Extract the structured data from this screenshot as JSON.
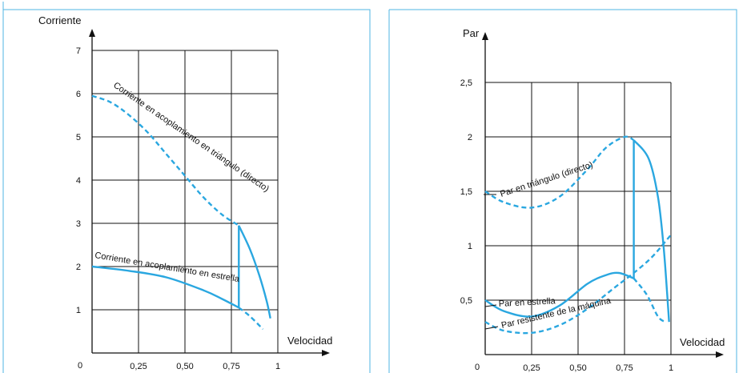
{
  "chart_data": [
    {
      "type": "line",
      "title": "",
      "ylabel": "Corriente",
      "xlabel": "Velocidad",
      "xlim": [
        0,
        1
      ],
      "ylim": [
        0,
        7
      ],
      "x_ticks": [
        {
          "value": 0,
          "label": "0"
        },
        {
          "value": 0.25,
          "label": "0,25"
        },
        {
          "value": 0.5,
          "label": "0,50"
        },
        {
          "value": 0.75,
          "label": "0,75"
        },
        {
          "value": 1,
          "label": "1"
        }
      ],
      "y_ticks": [
        {
          "value": 1,
          "label": "1"
        },
        {
          "value": 2,
          "label": "2"
        },
        {
          "value": 3,
          "label": "3"
        },
        {
          "value": 4,
          "label": "4"
        },
        {
          "value": 5,
          "label": "5"
        },
        {
          "value": 6,
          "label": "6"
        },
        {
          "value": 7,
          "label": "7"
        }
      ],
      "grid": true,
      "color": "#2aa7e0",
      "series": [
        {
          "name": "Corriente en acoplamiento en triángulo (directo)",
          "style": "dashed",
          "points": [
            [
              0,
              5.95
            ],
            [
              0.1,
              5.8
            ],
            [
              0.2,
              5.5
            ],
            [
              0.3,
              5.1
            ],
            [
              0.4,
              4.6
            ],
            [
              0.5,
              4.1
            ],
            [
              0.6,
              3.6
            ],
            [
              0.7,
              3.2
            ],
            [
              0.79,
              2.95
            ]
          ]
        },
        {
          "name": "",
          "style": "solid",
          "points": [
            [
              0.79,
              2.95
            ],
            [
              0.85,
              2.4
            ],
            [
              0.9,
              1.8
            ],
            [
              0.94,
              1.2
            ],
            [
              0.96,
              0.8
            ]
          ]
        },
        {
          "name": "Corriente en acoplamiento en estrella",
          "style": "solid",
          "points": [
            [
              0,
              2.0
            ],
            [
              0.2,
              1.9
            ],
            [
              0.4,
              1.75
            ],
            [
              0.6,
              1.45
            ],
            [
              0.7,
              1.25
            ],
            [
              0.79,
              1.05
            ]
          ]
        },
        {
          "name": "",
          "style": "dashed",
          "points": [
            [
              0.79,
              1.05
            ],
            [
              0.85,
              0.85
            ],
            [
              0.92,
              0.55
            ]
          ]
        },
        {
          "name": "",
          "style": "solid",
          "points": [
            [
              0.79,
              1.05
            ],
            [
              0.79,
              2.95
            ]
          ]
        }
      ]
    },
    {
      "type": "line",
      "title": "",
      "ylabel": "Par",
      "xlabel": "Velocidad",
      "xlim": [
        0,
        1
      ],
      "ylim": [
        0,
        2.75
      ],
      "x_ticks": [
        {
          "value": 0,
          "label": "0"
        },
        {
          "value": 0.25,
          "label": "0,25"
        },
        {
          "value": 0.5,
          "label": "0,50"
        },
        {
          "value": 0.75,
          "label": "0,75"
        },
        {
          "value": 1,
          "label": "1"
        }
      ],
      "y_ticks": [
        {
          "value": 0.5,
          "label": "0,5"
        },
        {
          "value": 1,
          "label": "1"
        },
        {
          "value": 1.5,
          "label": "1,5"
        },
        {
          "value": 2,
          "label": "2"
        },
        {
          "value": 2.5,
          "label": "2,5"
        }
      ],
      "grid": true,
      "color": "#2aa7e0",
      "series": [
        {
          "name": "Par en triángulo (directo)",
          "style": "dashed",
          "points": [
            [
              0,
              1.5
            ],
            [
              0.1,
              1.4
            ],
            [
              0.25,
              1.35
            ],
            [
              0.4,
              1.45
            ],
            [
              0.55,
              1.7
            ],
            [
              0.65,
              1.9
            ],
            [
              0.75,
              2.0
            ],
            [
              0.8,
              1.97
            ]
          ]
        },
        {
          "name": "",
          "style": "solid",
          "points": [
            [
              0.8,
              1.97
            ],
            [
              0.88,
              1.8
            ],
            [
              0.93,
              1.45
            ],
            [
              0.96,
              1.0
            ],
            [
              0.98,
              0.55
            ],
            [
              0.99,
              0.3
            ]
          ]
        },
        {
          "name": "Par en estrella",
          "style": "solid",
          "points": [
            [
              0,
              0.5
            ],
            [
              0.1,
              0.4
            ],
            [
              0.25,
              0.35
            ],
            [
              0.4,
              0.45
            ],
            [
              0.55,
              0.65
            ],
            [
              0.65,
              0.73
            ],
            [
              0.72,
              0.75
            ],
            [
              0.8,
              0.7
            ]
          ]
        },
        {
          "name": "",
          "style": "dashed",
          "points": [
            [
              0.8,
              0.7
            ],
            [
              0.87,
              0.55
            ],
            [
              0.93,
              0.35
            ],
            [
              0.97,
              0.3
            ]
          ]
        },
        {
          "name": "Par resistente de la máquina",
          "style": "dashed",
          "points": [
            [
              0,
              0.3
            ],
            [
              0.1,
              0.22
            ],
            [
              0.25,
              0.2
            ],
            [
              0.4,
              0.27
            ],
            [
              0.55,
              0.42
            ],
            [
              0.7,
              0.62
            ],
            [
              0.8,
              0.75
            ],
            [
              0.9,
              0.9
            ],
            [
              1.0,
              1.1
            ]
          ]
        },
        {
          "name": "",
          "style": "solid",
          "points": [
            [
              0.8,
              0.7
            ],
            [
              0.8,
              1.97
            ]
          ]
        }
      ]
    }
  ]
}
